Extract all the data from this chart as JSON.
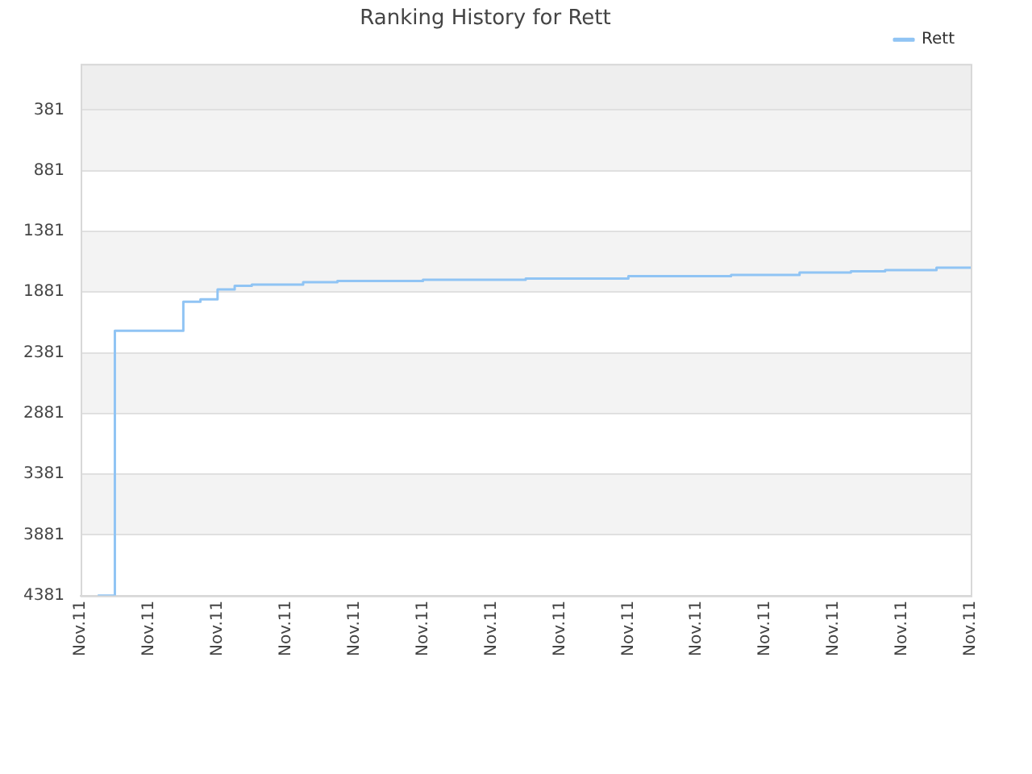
{
  "chart_data": {
    "type": "step",
    "title": "Ranking History for Rett",
    "categories": [
      "Nov.11",
      null,
      null,
      null,
      "Nov.11",
      null,
      null,
      null,
      "Nov.11",
      null,
      null,
      null,
      "Nov.11",
      null,
      null,
      null,
      "Nov.11",
      null,
      null,
      null,
      "Nov.11",
      null,
      null,
      null,
      "Nov.11",
      null,
      null,
      null,
      "Nov.11",
      null,
      null,
      null,
      "Nov.11",
      null,
      null,
      null,
      "Nov.11",
      null,
      null,
      null,
      "Nov.11",
      null,
      null,
      null,
      "Nov.11",
      null,
      null,
      null,
      "Nov.11",
      null,
      null,
      null,
      "Nov.11"
    ],
    "series": [
      {
        "name": "Rett",
        "color": "#90c4f4",
        "values": [
          null,
          4381,
          4381,
          2200,
          2200,
          2200,
          2200,
          1960,
          1940,
          1860,
          1830,
          1820,
          1820,
          1820,
          1800,
          1800,
          1790,
          1790,
          1790,
          1790,
          1790,
          1780,
          1780,
          1780,
          1780,
          1780,
          1780,
          1770,
          1770,
          1770,
          1770,
          1770,
          1770,
          1750,
          1750,
          1750,
          1750,
          1750,
          1750,
          1740,
          1740,
          1740,
          1740,
          1720,
          1720,
          1720,
          1710,
          1710,
          1700,
          1700,
          1700,
          1680,
          1680
        ]
      }
    ],
    "ylim": [
      4381,
      1
    ],
    "yticks": [
      381,
      881,
      1381,
      1881,
      2381,
      2881,
      3381,
      3881,
      4381
    ],
    "bands": [
      {
        "axis": "y",
        "from": 1,
        "to": 381,
        "color": "#eeeeee"
      },
      {
        "axis": "y",
        "from": 381,
        "to": 881,
        "color": "#f3f3f3"
      },
      {
        "axis": "y",
        "from": 1381,
        "to": 1881,
        "color": "#f3f3f3"
      },
      {
        "axis": "y",
        "from": 2381,
        "to": 2881,
        "color": "#f3f3f3"
      },
      {
        "axis": "y",
        "from": 3381,
        "to": 3881,
        "color": "#f3f3f3"
      }
    ],
    "grid": "y",
    "legend": "top right"
  }
}
